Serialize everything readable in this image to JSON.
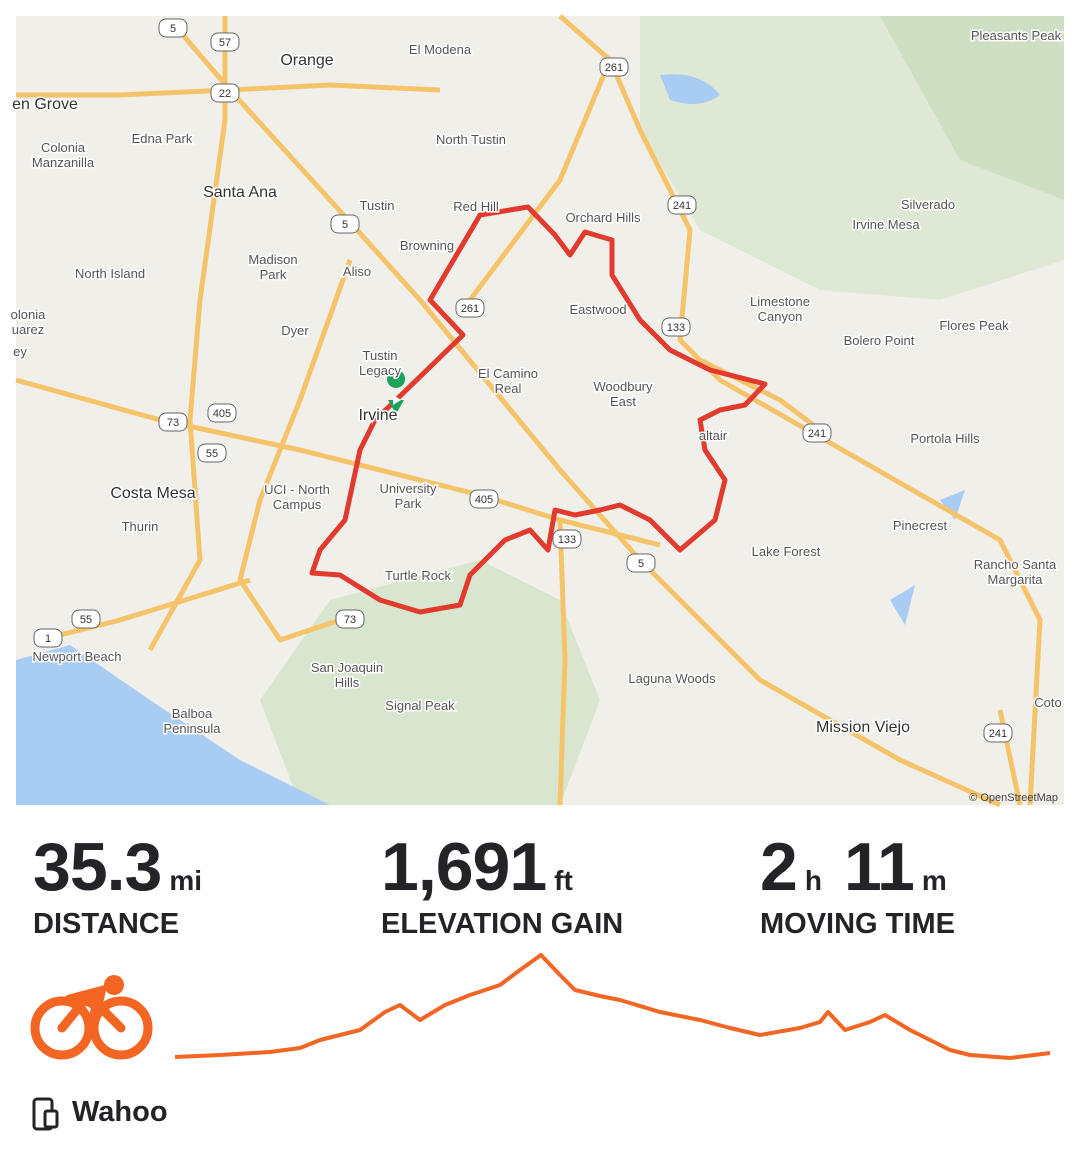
{
  "map": {
    "labels": [
      "Orange",
      "El Modena",
      "en Grove",
      "Edna Park",
      [
        "Colonia",
        "Manzanilla"
      ],
      "North Tustin",
      "Santa Ana",
      "Red Hill",
      "Tustin",
      "Orchard Hills",
      "Pleasants Peak",
      "Silverado",
      "Irvine Mesa",
      "Browning",
      "North Island",
      [
        "Madison",
        "Park"
      ],
      "Aliso",
      "Eastwood",
      [
        "Limestone",
        "Canyon"
      ],
      "Flores Peak",
      "Bolero Point",
      [
        "olonia",
        "uarez"
      ],
      "ey",
      "Dyer",
      [
        "Tustin",
        "Legacy"
      ],
      [
        "El Camino",
        "Real"
      ],
      [
        "Woodbury",
        "East"
      ],
      "Irvine",
      "altair",
      "Portola Hills",
      "Costa Mesa",
      [
        "UCI - North",
        "Campus"
      ],
      [
        "University",
        "Park"
      ],
      "Thurin",
      "Pinecrest",
      "Lake Forest",
      [
        "Rancho Santa",
        "Margarita"
      ],
      "Turtle Rock",
      "Newport Beach",
      "Laguna Woods",
      [
        "San Joaquin",
        "Hills"
      ],
      "Signal Peak",
      [
        "Balboa",
        "Peninsula"
      ],
      "Mission Viejo",
      "Coto"
    ],
    "shields": [
      "5",
      "57",
      "22",
      "261",
      "241",
      "5",
      "261",
      "133",
      "405",
      "73",
      "55",
      "405",
      "133",
      "5",
      "241",
      "73",
      "55",
      "1",
      "241"
    ],
    "attribution": "© OpenStreetMap"
  },
  "stats": [
    {
      "parts": [
        {
          "value": "35.3",
          "unit": "mi"
        }
      ],
      "label": "DISTANCE"
    },
    {
      "parts": [
        {
          "value": "1,691",
          "unit": "ft"
        }
      ],
      "label": "ELEVATION GAIN"
    },
    {
      "parts": [
        {
          "value": "2",
          "unit": "h"
        },
        {
          "value": "11",
          "unit": "m"
        }
      ],
      "label": "MOVING TIME"
    }
  ],
  "device": "Wahoo"
}
